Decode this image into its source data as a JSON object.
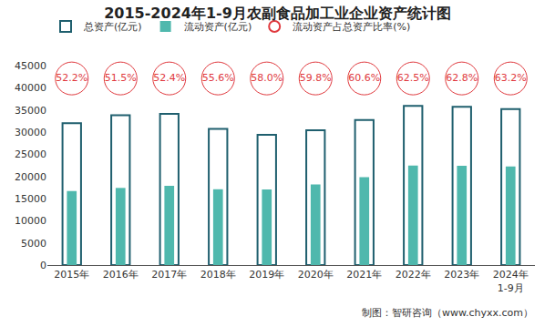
{
  "chart_data": {
    "type": "bar",
    "title": "2015-2024年1-9月农副食品加工业企业资产统计图",
    "source": "制图：智研咨询（www.chyxx.com）",
    "categories": [
      "2015年",
      "2016年",
      "2017年",
      "2018年",
      "2019年",
      "2020年",
      "2021年",
      "2022年",
      "2023年",
      "2024年\n1-9月"
    ],
    "series": [
      {
        "name": "总资产(亿元)",
        "type": "bar",
        "marker": "hollow",
        "color": "#1f5f6e",
        "values": [
          32000,
          33800,
          34100,
          30700,
          29400,
          30400,
          32700,
          35900,
          35700,
          35200
        ]
      },
      {
        "name": "流动资产(亿元)",
        "type": "bar",
        "color": "#4fb8ad",
        "values": [
          16700,
          17400,
          17900,
          17100,
          17050,
          18180,
          19820,
          22440,
          22420,
          22250
        ]
      },
      {
        "name": "流动资产占总资产比率(%)",
        "type": "label",
        "marker": "circle",
        "color": "#e0393e",
        "values": [
          52.2,
          51.5,
          52.4,
          55.6,
          58.0,
          59.8,
          60.6,
          62.5,
          62.8,
          63.2
        ],
        "value_labels": [
          "52.2%",
          "51.5%",
          "52.4%",
          "55.6%",
          "58.0%",
          "59.8%",
          "60.6%",
          "62.5%",
          "62.8%",
          "63.2%"
        ]
      }
    ],
    "ylim": [
      0,
      45000
    ],
    "yticks": [
      0,
      5000,
      10000,
      15000,
      20000,
      25000,
      30000,
      35000,
      40000,
      45000
    ],
    "grid": false,
    "legend": "top"
  }
}
